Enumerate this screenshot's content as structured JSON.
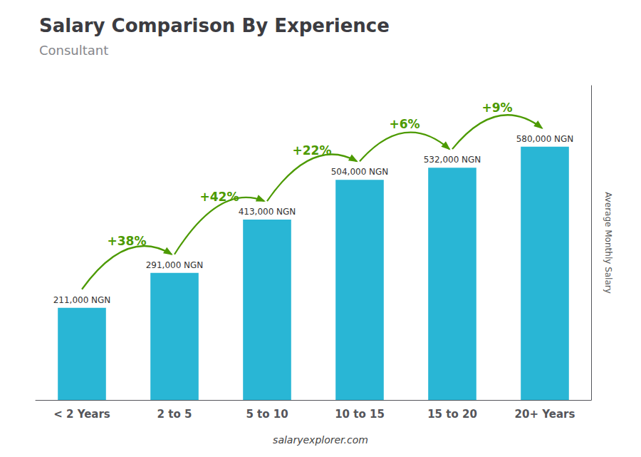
{
  "chart_data": {
    "type": "bar",
    "title": "Salary Comparison By Experience",
    "subtitle": "Consultant",
    "categories": [
      "< 2 Years",
      "2 to 5",
      "5 to 10",
      "10 to 15",
      "15 to 20",
      "20+ Years"
    ],
    "values": [
      211000,
      291000,
      413000,
      504000,
      532000,
      580000
    ],
    "value_labels": [
      "211,000 NGN",
      "291,000 NGN",
      "413,000 NGN",
      "504,000 NGN",
      "532,000 NGN",
      "580,000 NGN"
    ],
    "data_labels": true,
    "color": "#29b6d5",
    "ylabel": "Average Monthly Salary",
    "ylim": [
      0,
      720000
    ],
    "tick_labels": "x",
    "grid": false,
    "annotations": [
      "+38%",
      "+42%",
      "+22%",
      "+6%",
      "+9%"
    ],
    "source": "salaryexplorer.com"
  }
}
